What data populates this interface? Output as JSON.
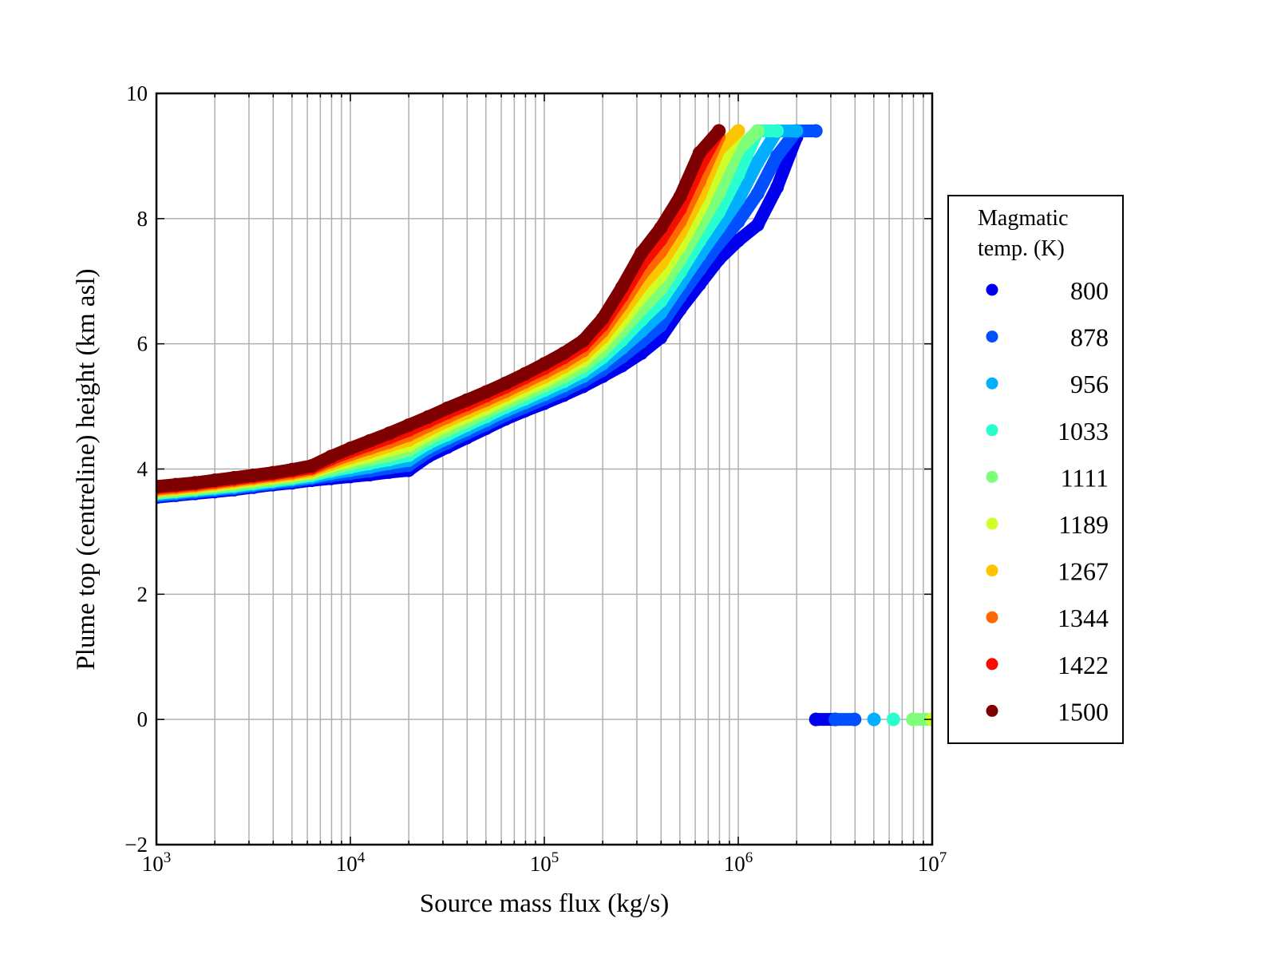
{
  "chart_data": {
    "type": "scatter",
    "title": "",
    "xlabel": "Source mass flux (kg/s)",
    "ylabel": "Plume top (centreline) height (km asl)",
    "xscale": "log",
    "xlim": [
      1000,
      10000000
    ],
    "ylim": [
      -2,
      10
    ],
    "grid": true,
    "x_tick_labels": [
      {
        "base": "10",
        "exp": "3"
      },
      {
        "base": "10",
        "exp": "4"
      },
      {
        "base": "10",
        "exp": "5"
      },
      {
        "base": "10",
        "exp": "6"
      },
      {
        "base": "10",
        "exp": "7"
      }
    ],
    "y_tick_labels": [
      "−2",
      "0",
      "2",
      "4",
      "6",
      "8",
      "10"
    ],
    "legend": {
      "title_lines": [
        "Magmatic",
        "temp. (K)"
      ],
      "placement": "outside-right"
    },
    "x_log10": [
      3.0,
      3.1,
      3.2,
      3.3,
      3.4,
      3.5,
      3.6,
      3.7,
      3.8,
      3.9,
      4.0,
      4.1,
      4.2,
      4.3,
      4.4,
      4.5,
      4.6,
      4.7,
      4.8,
      4.9,
      5.0,
      5.1,
      5.2,
      5.3,
      5.4,
      5.5,
      5.6,
      5.7,
      5.8,
      5.9,
      6.0,
      6.1,
      6.2,
      6.3,
      6.4,
      6.5,
      6.6,
      6.7,
      6.8,
      6.9,
      7.0
    ],
    "series": [
      {
        "name": "800",
        "color": "#0000ee",
        "y": [
          3.55,
          3.58,
          3.61,
          3.64,
          3.67,
          3.71,
          3.75,
          3.78,
          3.82,
          3.85,
          3.88,
          3.91,
          3.95,
          3.98,
          4.2,
          4.35,
          4.5,
          4.65,
          4.8,
          4.93,
          5.05,
          5.18,
          5.32,
          5.48,
          5.65,
          5.85,
          6.1,
          6.55,
          6.95,
          7.35,
          7.65,
          7.9,
          8.5,
          9.3,
          0,
          0,
          null,
          null,
          null,
          null,
          null
        ]
      },
      {
        "name": "878",
        "color": "#0050ff",
        "y": [
          3.57,
          3.6,
          3.63,
          3.66,
          3.69,
          3.73,
          3.77,
          3.8,
          3.85,
          3.89,
          3.93,
          3.97,
          4.02,
          4.06,
          4.27,
          4.42,
          4.57,
          4.71,
          4.86,
          4.99,
          5.12,
          5.25,
          5.4,
          5.58,
          5.79,
          6.03,
          6.29,
          6.75,
          7.18,
          7.6,
          7.95,
          8.4,
          9.0,
          9.4,
          9.4,
          0,
          0,
          null,
          null,
          null,
          null
        ]
      },
      {
        "name": "956",
        "color": "#00b0ff",
        "y": [
          3.59,
          3.62,
          3.65,
          3.68,
          3.71,
          3.75,
          3.79,
          3.83,
          3.87,
          3.93,
          3.98,
          4.03,
          4.09,
          4.14,
          4.34,
          4.49,
          4.63,
          4.78,
          4.93,
          5.06,
          5.19,
          5.33,
          5.48,
          5.68,
          5.93,
          6.2,
          6.49,
          6.95,
          7.41,
          7.85,
          8.3,
          8.9,
          9.4,
          9.4,
          null,
          null,
          null,
          0,
          null,
          null,
          null
        ]
      },
      {
        "name": "1033",
        "color": "#29ffce",
        "y": [
          3.61,
          3.64,
          3.67,
          3.7,
          3.73,
          3.77,
          3.81,
          3.85,
          3.9,
          3.97,
          4.03,
          4.09,
          4.15,
          4.22,
          4.41,
          4.55,
          4.7,
          4.84,
          4.99,
          5.12,
          5.26,
          5.4,
          5.56,
          5.78,
          6.06,
          6.38,
          6.68,
          7.14,
          7.64,
          8.1,
          8.7,
          9.4,
          9.4,
          null,
          null,
          null,
          null,
          null,
          0,
          null,
          null
        ]
      },
      {
        "name": "1111",
        "color": "#7dff7a",
        "y": [
          3.62,
          3.65,
          3.68,
          3.72,
          3.75,
          3.79,
          3.83,
          3.87,
          3.92,
          4.0,
          4.08,
          4.15,
          4.22,
          4.3,
          4.48,
          4.62,
          4.76,
          4.91,
          5.05,
          5.19,
          5.33,
          5.47,
          5.64,
          5.88,
          6.2,
          6.55,
          6.87,
          7.34,
          7.87,
          8.4,
          9.1,
          9.4,
          null,
          null,
          null,
          null,
          null,
          null,
          null,
          0,
          0
        ]
      },
      {
        "name": "1189",
        "color": "#ceff29",
        "y": [
          3.65,
          3.68,
          3.71,
          3.74,
          3.78,
          3.82,
          3.86,
          3.9,
          3.95,
          4.05,
          4.13,
          4.21,
          4.3,
          4.38,
          4.55,
          4.7,
          4.84,
          4.97,
          5.12,
          5.26,
          5.4,
          5.56,
          5.73,
          6.0,
          6.35,
          6.75,
          7.08,
          7.56,
          8.13,
          8.8,
          9.4,
          null,
          null,
          null,
          null,
          null,
          null,
          null,
          null,
          null,
          0
        ]
      },
      {
        "name": "1267",
        "color": "#ffc400",
        "y": [
          3.66,
          3.69,
          3.72,
          3.76,
          3.8,
          3.84,
          3.88,
          3.92,
          3.97,
          4.08,
          4.18,
          4.27,
          4.37,
          4.46,
          4.62,
          4.77,
          4.9,
          5.04,
          5.18,
          5.33,
          5.47,
          5.63,
          5.81,
          6.1,
          6.49,
          6.92,
          7.27,
          7.76,
          8.36,
          9.1,
          9.4,
          null,
          null,
          null,
          null,
          null,
          null,
          null,
          null,
          null,
          null
        ]
      },
      {
        "name": "1344",
        "color": "#ff6800",
        "y": [
          3.68,
          3.71,
          3.74,
          3.78,
          3.82,
          3.86,
          3.9,
          3.94,
          4.0,
          4.12,
          4.23,
          4.33,
          4.43,
          4.54,
          4.69,
          4.83,
          4.97,
          5.1,
          5.24,
          5.39,
          5.54,
          5.7,
          5.89,
          6.2,
          6.63,
          7.1,
          7.47,
          7.95,
          8.59,
          9.3,
          null,
          null,
          null,
          null,
          null,
          null,
          null,
          null,
          null,
          null,
          null
        ]
      },
      {
        "name": "1422",
        "color": "#f50e00",
        "y": [
          3.7,
          3.73,
          3.76,
          3.8,
          3.84,
          3.88,
          3.92,
          3.97,
          4.02,
          4.16,
          4.28,
          4.39,
          4.5,
          4.62,
          4.76,
          4.9,
          5.03,
          5.17,
          5.31,
          5.46,
          5.61,
          5.78,
          5.97,
          6.3,
          6.76,
          7.27,
          7.66,
          8.15,
          8.82,
          9.4,
          null,
          null,
          null,
          null,
          null,
          null,
          null,
          null,
          null,
          null,
          null
        ]
      },
      {
        "name": "1500",
        "color": "#7f0000",
        "y": [
          3.72,
          3.75,
          3.78,
          3.82,
          3.86,
          3.9,
          3.94,
          3.99,
          4.05,
          4.2,
          4.33,
          4.45,
          4.57,
          4.7,
          4.83,
          4.97,
          5.1,
          5.23,
          5.37,
          5.52,
          5.68,
          5.85,
          6.05,
          6.4,
          6.9,
          7.45,
          7.85,
          8.35,
          9.05,
          9.4,
          null,
          null,
          null,
          null,
          null,
          null,
          null,
          null,
          null,
          null,
          null
        ]
      }
    ]
  }
}
